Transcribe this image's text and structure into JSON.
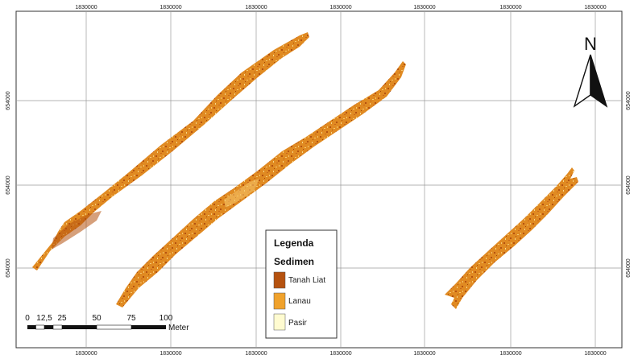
{
  "map": {
    "top_ticks": [
      "1830000",
      "1830000",
      "1830000",
      "1830000",
      "1830000",
      "1830000",
      "1830000"
    ],
    "bottom_ticks": [
      "1830000",
      "1830000",
      "1830000",
      "1830000",
      "1830000",
      "1830000",
      "1830000"
    ],
    "left_ticks": [
      "654000",
      "654000",
      "654000"
    ],
    "right_ticks": [
      "654000",
      "654000",
      "654000"
    ]
  },
  "north_arrow": {
    "label": "N"
  },
  "legend": {
    "title": "Legenda",
    "subtitle": "Sedimen",
    "items": [
      {
        "label": "Tanah Liat",
        "color": "#b5520f"
      },
      {
        "label": "Lanau",
        "color": "#f0a22c"
      },
      {
        "label": "Pasir",
        "color": "#fffbd0"
      }
    ]
  },
  "scale_bar": {
    "labels": [
      "0",
      "12,5",
      "25",
      "50",
      "75",
      "100"
    ],
    "unit": "Meter"
  },
  "colors": {
    "sediment_dark": "#b5520f",
    "sediment_mid": "#d8781c",
    "sediment_light": "#f0a22c",
    "grid": "#9a9a9a"
  }
}
